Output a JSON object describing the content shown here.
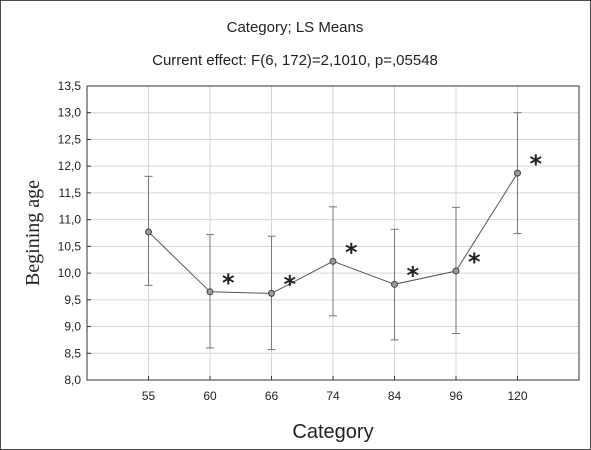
{
  "chart_data": {
    "type": "line",
    "title": "Category; LS Means",
    "subtitle": "Current effect: F(6, 172)=2,1010, p=,05548",
    "xlabel": "Category",
    "ylabel": "Begining age",
    "categories": [
      "55",
      "60",
      "66",
      "74",
      "84",
      "96",
      "120"
    ],
    "series": [
      {
        "values": [
          10.77,
          9.65,
          9.62,
          10.22,
          9.79,
          10.04,
          11.87
        ],
        "lower": [
          9.77,
          8.6,
          8.57,
          9.2,
          8.75,
          8.87,
          10.74
        ],
        "upper": [
          11.81,
          10.72,
          10.69,
          11.24,
          10.82,
          11.23,
          13.0
        ]
      }
    ],
    "annotations": [
      "",
      "*",
      "*",
      "*",
      "*",
      "*",
      "*"
    ],
    "ylim": [
      8.0,
      13.5
    ],
    "yticks": [
      "8,0",
      "8,5",
      "9,0",
      "9,5",
      "10,0",
      "10,5",
      "11,0",
      "11,5",
      "12,0",
      "12,5",
      "13,0",
      "13,5"
    ],
    "grid": true,
    "colors": {
      "line": "#555555",
      "marker": "#444444",
      "errorbar": "#777777",
      "grid": "#d6d6d6",
      "axis": "#333333"
    }
  }
}
